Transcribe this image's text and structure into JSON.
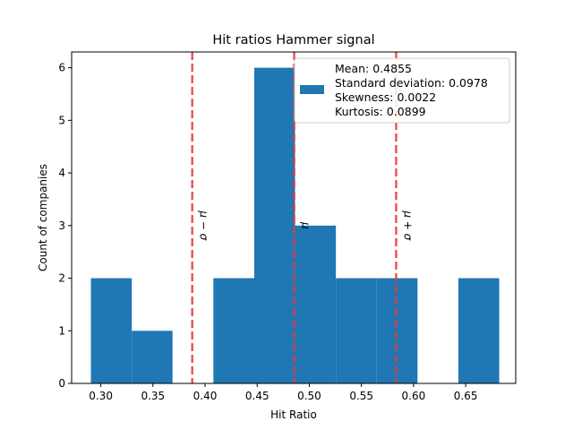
{
  "chart_data": {
    "type": "bar",
    "title": "Hit ratios Hammer signal",
    "xlabel": "Hit Ratio",
    "ylabel": "Count of companies",
    "xlim": [
      0.272,
      0.698
    ],
    "ylim": [
      0,
      6.3
    ],
    "xticks": [
      0.3,
      0.35,
      0.4,
      0.45,
      0.5,
      0.55,
      0.6,
      0.65
    ],
    "xtick_labels": [
      "0.30",
      "0.35",
      "0.40",
      "0.45",
      "0.50",
      "0.55",
      "0.60",
      "0.65"
    ],
    "yticks": [
      0,
      1,
      2,
      3,
      4,
      5,
      6
    ],
    "ytick_labels": [
      "0",
      "1",
      "2",
      "3",
      "4",
      "5",
      "6"
    ],
    "grid": false,
    "bar_color": "#1f77b4",
    "bins": [
      {
        "x0": 0.2905,
        "x1": 0.3297,
        "count": 2
      },
      {
        "x0": 0.3297,
        "x1": 0.3688,
        "count": 1
      },
      {
        "x0": 0.3688,
        "x1": 0.408,
        "count": 0
      },
      {
        "x0": 0.408,
        "x1": 0.4472,
        "count": 2
      },
      {
        "x0": 0.4472,
        "x1": 0.4863,
        "count": 6
      },
      {
        "x0": 0.4863,
        "x1": 0.5255,
        "count": 3
      },
      {
        "x0": 0.5255,
        "x1": 0.5647,
        "count": 2
      },
      {
        "x0": 0.5647,
        "x1": 0.6038,
        "count": 2
      },
      {
        "x0": 0.6038,
        "x1": 0.643,
        "count": 0
      },
      {
        "x0": 0.643,
        "x1": 0.6822,
        "count": 2
      }
    ],
    "reference_lines": [
      {
        "x": 0.3877,
        "label": "μ − σ",
        "color": "#e8383b"
      },
      {
        "x": 0.4855,
        "label": "μ",
        "color": "#e8383b"
      },
      {
        "x": 0.5833,
        "label": "μ + σ",
        "color": "#e8383b"
      }
    ],
    "legend": {
      "position": "top-right",
      "lines": [
        "Mean: 0.4855",
        "Standard deviation: 0.0978",
        "Skewness: 0.0022",
        "Kurtosis: 0.0899"
      ]
    }
  }
}
